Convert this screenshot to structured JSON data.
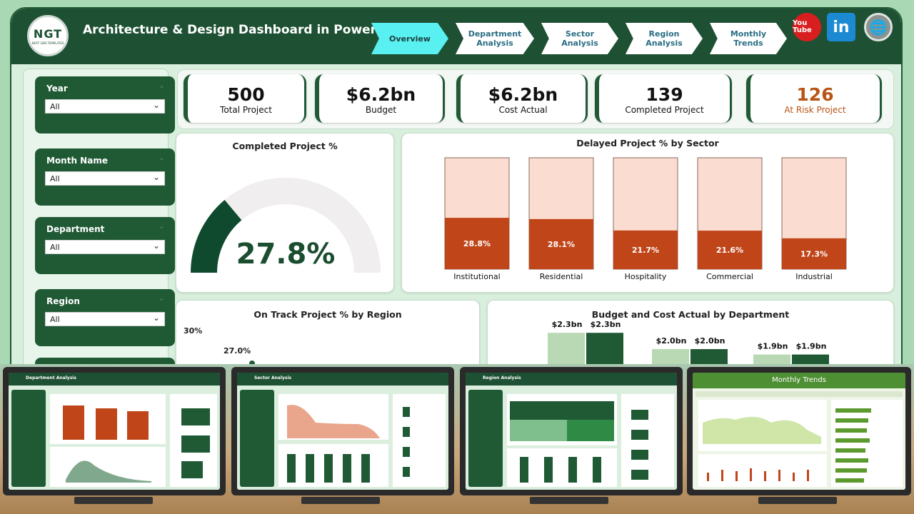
{
  "header": {
    "logo_main": "NGT",
    "logo_sub": "NEXT GEN TEMPLATES",
    "title": "Architecture & Design Dashboard in Power BI",
    "nav": [
      {
        "label": "Overview",
        "active": true
      },
      {
        "label": "Department Analysis",
        "active": false
      },
      {
        "label": "Sector Analysis",
        "active": false
      },
      {
        "label": "Region Analysis",
        "active": false
      },
      {
        "label": "Monthly Trends",
        "active": false
      }
    ],
    "social": {
      "youtube": "You Tube",
      "linkedin": "in",
      "web": "WWW"
    }
  },
  "slicers": [
    {
      "label": "Year",
      "value": "All"
    },
    {
      "label": "Month Name",
      "value": "All"
    },
    {
      "label": "Department",
      "value": "All"
    },
    {
      "label": "Region",
      "value": "All"
    }
  ],
  "kpis": [
    {
      "value": "500",
      "label": "Total Project"
    },
    {
      "value": "$6.2bn",
      "label": "Budget"
    },
    {
      "value": "$6.2bn",
      "label": "Cost Actual"
    },
    {
      "value": "139",
      "label": "Completed Project"
    },
    {
      "value": "126",
      "label": "At Risk Project"
    }
  ],
  "gauge": {
    "title": "Completed Project %",
    "value_label": "27.8%",
    "value": 0.278
  },
  "delayed": {
    "title": "Delayed Project % by Sector",
    "chart_data": {
      "type": "bar",
      "categories": [
        "Institutional",
        "Residential",
        "Hospitality",
        "Commercial",
        "Industrial"
      ],
      "values": [
        28.8,
        28.1,
        21.7,
        21.6,
        17.3
      ],
      "labels": [
        "28.8%",
        "28.1%",
        "21.7%",
        "21.6%",
        "17.3%"
      ],
      "ylim": [
        0,
        100
      ]
    }
  },
  "ontrack": {
    "title": "On Track Project % by Region",
    "y_tick": "30%",
    "point_label": "27.0%"
  },
  "budget": {
    "title": "Budget and Cost Actual by Department",
    "chart_data": {
      "type": "bar",
      "series": [
        {
          "values": [
            2.3,
            2.0,
            1.9
          ],
          "labels": [
            "$2.3bn",
            "$2.0bn",
            "$1.9bn"
          ]
        },
        {
          "values": [
            2.3,
            2.0,
            1.9
          ],
          "labels": [
            "$2.3bn",
            "$2.0bn",
            "$1.9bn"
          ]
        }
      ]
    }
  },
  "previews": [
    {
      "title": "Department Analysis"
    },
    {
      "title": "Sector Analysis"
    },
    {
      "title": "Region Analysis"
    },
    {
      "title": "Monthly Trends"
    }
  ],
  "colors": {
    "primary": "#1e5133",
    "accent": "#58f0f0",
    "risk": "#b85415",
    "bar_bg": "#fbdcd0",
    "bar_fill": "#c0461a"
  }
}
